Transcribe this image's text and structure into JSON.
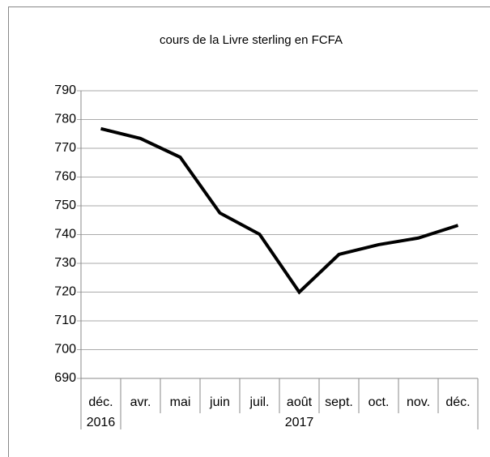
{
  "chart_data": {
    "type": "line",
    "title": "cours de la Livre sterling en FCFA",
    "groups": [
      {
        "name": "2016",
        "categories": [
          "déc."
        ]
      },
      {
        "name": "2017",
        "categories": [
          "avr.",
          "mai",
          "juin",
          "juil.",
          "août",
          "sept.",
          "oct.",
          "nov.",
          "déc."
        ]
      }
    ],
    "values": [
      776.8,
      773.4,
      766.9,
      747.5,
      740.1,
      720,
      733.1,
      736.5,
      738.8,
      743.2
    ],
    "color": "#000000",
    "ylim": [
      690,
      790
    ],
    "yticks": [
      690,
      700,
      710,
      720,
      730,
      740,
      750,
      760,
      770,
      780,
      790
    ],
    "grid": true
  }
}
